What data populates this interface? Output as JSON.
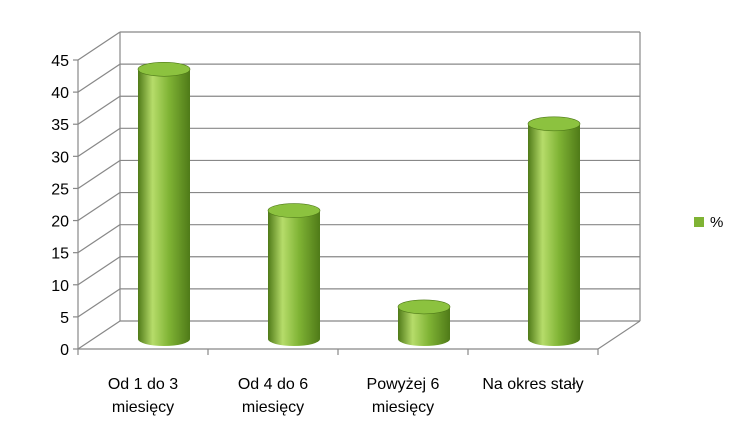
{
  "chart_data": {
    "type": "bar",
    "style": "3d-cylinder",
    "categories": [
      [
        "Od 1 do 3",
        "miesięcy"
      ],
      [
        "Od 4 do 6",
        "miesięcy"
      ],
      [
        "Powyżej 6",
        "miesięcy"
      ],
      [
        "Na okres stały"
      ]
    ],
    "series": [
      {
        "name": "%",
        "values": [
          42,
          20,
          5,
          33.5
        ]
      }
    ],
    "ylim": [
      0,
      45
    ],
    "yticks": [
      "0",
      "5",
      "10",
      "15",
      "20",
      "25",
      "30",
      "35",
      "40",
      "45"
    ],
    "grid": true,
    "legend_position": "right",
    "colors": {
      "bar_body": "#7fb334",
      "bar_light": "#b6dc6a",
      "bar_dark": "#4f7a18",
      "bar_top": "#8cc23f",
      "grid": "#888888",
      "axis": "#888888"
    }
  }
}
